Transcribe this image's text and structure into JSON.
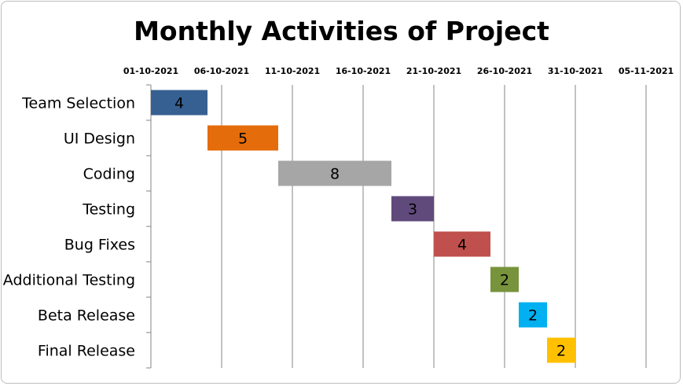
{
  "chart_data": {
    "type": "bar",
    "orientation": "horizontal",
    "style": "gantt",
    "title": "Monthly Activities of Project",
    "x_tick_labels": [
      "01-10-2021",
      "06-10-2021",
      "11-10-2021",
      "16-10-2021",
      "21-10-2021",
      "26-10-2021",
      "31-10-2021",
      "05-11-2021"
    ],
    "xlim": [
      "01-10-2021",
      "05-11-2021"
    ],
    "tasks": [
      {
        "name": "Team Selection",
        "start": "01-10-2021",
        "duration": 4,
        "color": "#376092"
      },
      {
        "name": "UI Design",
        "start": "05-10-2021",
        "duration": 5,
        "color": "#E46C0A"
      },
      {
        "name": "Coding",
        "start": "10-10-2021",
        "duration": 8,
        "color": "#A6A6A6"
      },
      {
        "name": "Testing",
        "start": "18-10-2021",
        "duration": 3,
        "color": "#604A7B"
      },
      {
        "name": "Bug Fixes",
        "start": "21-10-2021",
        "duration": 4,
        "color": "#C0504D"
      },
      {
        "name": "Additional Testing",
        "start": "25-10-2021",
        "duration": 2,
        "color": "#77933C"
      },
      {
        "name": "Beta Release",
        "start": "27-10-2021",
        "duration": 2,
        "color": "#00B0F0"
      },
      {
        "name": "Final Release",
        "start": "29-10-2021",
        "duration": 2,
        "color": "#FFC000"
      }
    ],
    "grid": true,
    "legend": "none"
  }
}
